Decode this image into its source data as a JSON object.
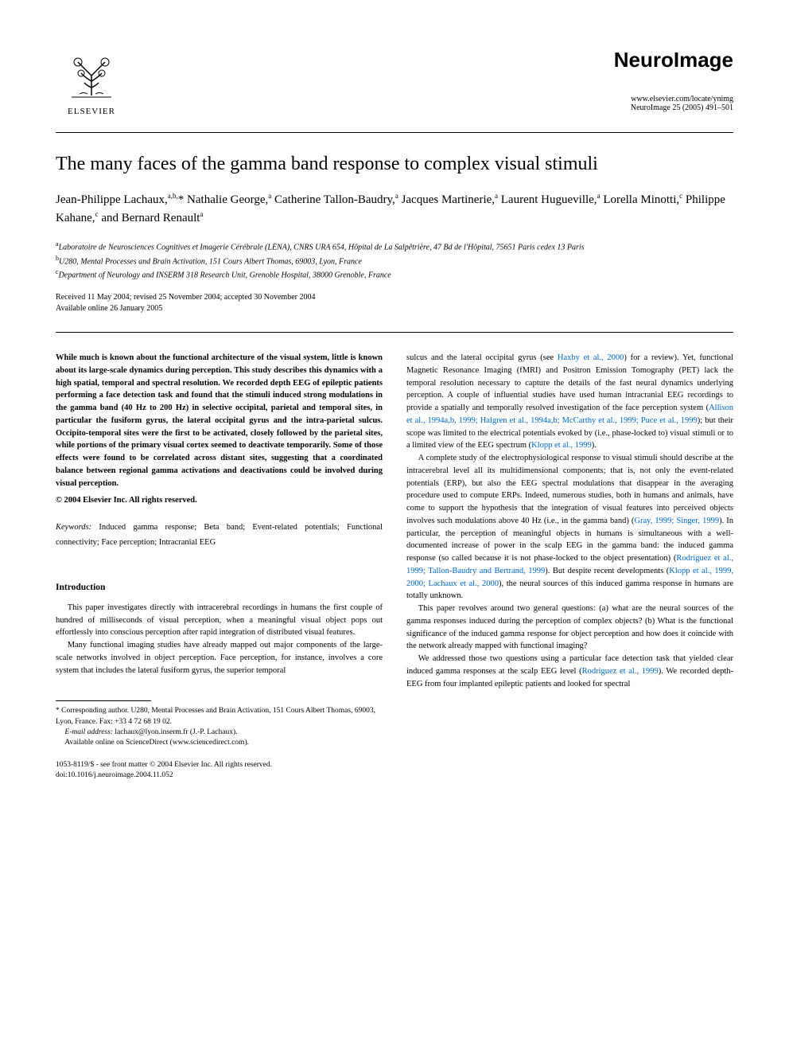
{
  "header": {
    "publisher_label": "ELSEVIER",
    "journal_title": "NeuroImage",
    "journal_url": "www.elsevier.com/locate/ynimg",
    "journal_citation": "NeuroImage 25 (2005) 491–501"
  },
  "article": {
    "title": "The many faces of the gamma band response to complex visual stimuli",
    "authors_html": "Jean-Philippe Lachaux,<sup>a,b,</sup>* Nathalie George,<sup>a</sup> Catherine Tallon-Baudry,<sup>a</sup> Jacques Martinerie,<sup>a</sup> Laurent Hugueville,<sup>a</sup> Lorella Minotti,<sup>c</sup> Philippe Kahane,<sup>c</sup> and Bernard Renault<sup>a</sup>",
    "affiliations": [
      {
        "sup": "a",
        "text": "Laboratoire de Neurosciences Cognitives et Imagerie Cérébrale (LENA), CNRS URA 654, Hôpital de La Salpêtrière, 47 Bd de l'Hôpital, 75651 Paris cedex 13 Paris"
      },
      {
        "sup": "b",
        "text": "U280, Mental Processes and Brain Activation, 151 Cours Albert Thomas, 69003, Lyon, France"
      },
      {
        "sup": "c",
        "text": "Department of Neurology and INSERM 318 Research Unit, Grenoble Hospital, 38000 Grenoble, France"
      }
    ],
    "dates_line1": "Received 11 May 2004; revised 25 November 2004; accepted 30 November 2004",
    "dates_line2": "Available online 26 January 2005"
  },
  "abstract": {
    "text": "While much is known about the functional architecture of the visual system, little is known about its large-scale dynamics during perception. This study describes this dynamics with a high spatial, temporal and spectral resolution. We recorded depth EEG of epileptic patients performing a face detection task and found that the stimuli induced strong modulations in the gamma band (40 Hz to 200 Hz) in selective occipital, parietal and temporal sites, in particular the fusiform gyrus, the lateral occipital gyrus and the intra-parietal sulcus. Occipito-temporal sites were the first to be activated, closely followed by the parietal sites, while portions of the primary visual cortex seemed to deactivate temporarily. Some of those effects were found to be correlated across distant sites, suggesting that a coordinated balance between regional gamma activations and deactivations could be involved during visual perception.",
    "copyright": "© 2004 Elsevier Inc. All rights reserved."
  },
  "keywords": {
    "label": "Keywords:",
    "text": " Induced gamma response; Beta band; Event-related potentials; Functional connectivity; Face perception; Intracranial EEG"
  },
  "introduction": {
    "heading": "Introduction",
    "p1": "This paper investigates directly with intracerebral recordings in humans the first couple of hundred of milliseconds of visual perception, when a meaningful visual object pops out effortlessly into conscious perception after rapid integration of distributed visual features.",
    "p2_pre": "Many functional imaging studies have already mapped out major components of the large-scale networks involved in object perception. Face perception, for instance, involves a core system that includes the lateral fusiform gyrus, the superior temporal ",
    "p2_post_a": "sulcus and the lateral occipital gyrus (see ",
    "p2_link1": "Haxby et al., 2000",
    "p2_post_b": ") for a review). Yet, functional Magnetic Resonance Imaging (fMRI) and Positron Emission Tomography (PET) lack the temporal resolution necessary to capture the details of the fast neural dynamics underlying perception. A couple of influential studies have used human intracranial EEG recordings to provide a spatially and temporally resolved investigation of the face perception system (",
    "p2_link2": "Allison et al., 1994a,b, 1999; Halgren et al., 1994a,b; McCarthy et al., 1999; Puce et al., 1999",
    "p2_post_c": "); but their scope was limited to the electrical potentials evoked by (i.e., phase-locked to) visual stimuli or to a limited view of the EEG spectrum (",
    "p2_link3": "Klopp et al., 1999",
    "p2_post_d": ").",
    "p3_a": "A complete study of the electrophysiological response to visual stimuli should describe at the intracerebral level all its multidimensional components; that is, not only the event-related potentials (ERP), but also the EEG spectral modulations that disappear in the averaging procedure used to compute ERPs. Indeed, numerous studies, both in humans and animals, have come to support the hypothesis that the integration of visual features into perceived objects involves such modulations above 40 Hz (i.e., in the gamma band) (",
    "p3_link1": "Gray, 1999; Singer, 1999",
    "p3_b": "). In particular, the perception of meaningful objects in humans is simultaneous with a well-documented increase of power in the scalp EEG in the gamma band: the induced gamma response (so called because it is not phase-locked to the object presentation) (",
    "p3_link2": "Rodriguez et al., 1999; Tallon-Baudry and Bertrand, 1999",
    "p3_c": "). But despite recent developments (",
    "p3_link3": "Klopp et al., 1999, 2000; Lachaux et al., 2000",
    "p3_d": "), the neural sources of this induced gamma response in humans are totally unknown.",
    "p4": "This paper revolves around two general questions: (a) what are the neural sources of the gamma responses induced during the perception of complex objects? (b) What is the functional significance of the induced gamma response for object perception and how does it coincide with the network already mapped with functional imaging?",
    "p5_a": "We addressed those two questions using a particular face detection task that yielded clear induced gamma responses at the scalp EEG level (",
    "p5_link1": "Rodriguez et al., 1999",
    "p5_b": "). We recorded depth-EEG from four implanted epileptic patients and looked for spectral"
  },
  "footnotes": {
    "corr_label": "* Corresponding author. U280, Mental Processes and Brain Activation, 151 Cours Albert Thomas, 69003, Lyon, France. Fax: +33 4 72 68 19 02.",
    "email_label": "E-mail address:",
    "email_value": " lachaux@lyon.inserm.fr (J.-P. Lachaux).",
    "availability": "Available online on ScienceDirect (www.sciencedirect.com).",
    "copyright_line": "1053-8119/$ - see front matter © 2004 Elsevier Inc. All rights reserved.",
    "doi": "doi:10.1016/j.neuroimage.2004.11.052"
  },
  "colors": {
    "text": "#000000",
    "link": "#0066cc",
    "background": "#ffffff",
    "rule": "#000000"
  },
  "fonts": {
    "body_family": "Georgia, Times New Roman, serif",
    "journal_family": "Trebuchet MS, Helvetica, sans-serif",
    "title_size_pt": 18,
    "journal_size_pt": 20,
    "body_size_pt": 8,
    "abstract_size_pt": 8,
    "footnote_size_pt": 7
  }
}
